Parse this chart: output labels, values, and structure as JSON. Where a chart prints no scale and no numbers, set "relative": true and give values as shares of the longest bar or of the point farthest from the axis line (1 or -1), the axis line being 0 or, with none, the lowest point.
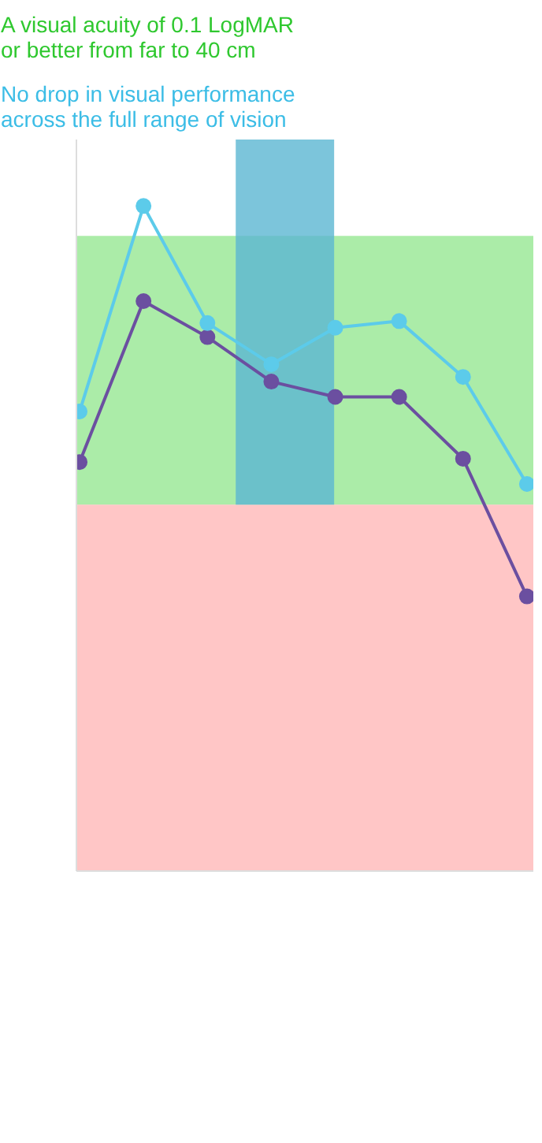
{
  "chart_data": {
    "type": "line",
    "title": "A visual acuity of 0.1 LogMAR or better from far to 40 cm",
    "subtitle": "No drop in visual performance across the full range of vision",
    "relative": true,
    "categories": [
      null,
      null,
      null,
      null,
      null,
      null,
      null,
      null
    ],
    "series": [
      {
        "color": "#6b4fa0",
        "values": [
          0.615,
          0.857,
          0.803,
          0.736,
          0.713,
          0.713,
          0.62,
          0.413
        ]
      },
      {
        "color": "#5ccbea",
        "values": [
          0.691,
          1,
          0.824,
          0.762,
          0.817,
          0.827,
          0.743,
          0.582
        ]
      }
    ],
    "bands": [
      {
        "axis": "y",
        "from": 0.551,
        "to": 0.955,
        "color": "#8fe68b"
      },
      {
        "axis": "y",
        "from": 0,
        "to": 0.551,
        "color": "#ffb3b3"
      }
    ],
    "marker": "circle"
  }
}
